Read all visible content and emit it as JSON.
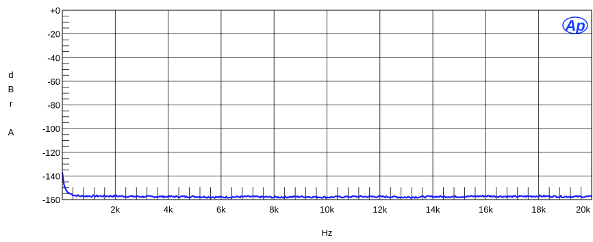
{
  "chart_data": {
    "type": "line",
    "title": "",
    "xlabel": "Hz",
    "ylabel_chars": [
      "d",
      "B",
      "r",
      "",
      "A"
    ],
    "xlim": [
      0,
      20000
    ],
    "ylim": [
      -160,
      0
    ],
    "x_tick_values": [
      2000,
      4000,
      6000,
      8000,
      10000,
      12000,
      14000,
      16000,
      18000,
      20000
    ],
    "x_tick_labels": [
      "2k",
      "4k",
      "6k",
      "8k",
      "10k",
      "12k",
      "14k",
      "16k",
      "18k",
      "20k"
    ],
    "y_tick_values": [
      0,
      -20,
      -40,
      -60,
      -80,
      -100,
      -120,
      -140,
      -160
    ],
    "y_tick_labels": [
      "+0",
      "-20",
      "-40",
      "-60",
      "-80",
      "-100",
      "-120",
      "-140",
      "-160"
    ],
    "grid": true,
    "series": [
      {
        "color": "#1a1aff",
        "x": [
          0,
          30,
          60,
          100,
          150,
          200,
          300,
          400,
          500,
          700,
          1000,
          1500,
          2000,
          3000,
          4000,
          5000,
          6000,
          7000,
          8000,
          9000,
          10000,
          11000,
          12000,
          13000,
          14000,
          15000,
          16000,
          17000,
          18000,
          19000,
          20000
        ],
        "y": [
          -137,
          -142,
          -147,
          -150,
          -152,
          -154,
          -155,
          -156,
          -156.5,
          -157,
          -157,
          -157,
          -157,
          -157.5,
          -157.5,
          -157.5,
          -158,
          -157.5,
          -158,
          -157.5,
          -158,
          -157.5,
          -157.5,
          -158,
          -157.5,
          -157.5,
          -157,
          -157.5,
          -157,
          -157.5,
          -157.5
        ]
      }
    ]
  },
  "logo": {
    "text": "Ap",
    "color": "#1a3cff"
  }
}
